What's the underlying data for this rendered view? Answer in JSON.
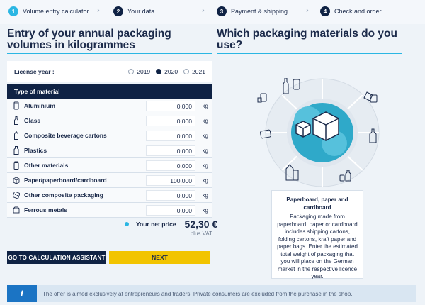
{
  "steps": [
    {
      "num": "1",
      "label": "Volume entry calculator"
    },
    {
      "num": "2",
      "label": "Your data"
    },
    {
      "num": "3",
      "label": "Payment & shipping"
    },
    {
      "num": "4",
      "label": "Check and order"
    }
  ],
  "left_heading": "Entry of your annual packaging volumes in kilogrammes",
  "right_heading": "Which packaging materials do you use?",
  "license": {
    "label": "License year :",
    "options": [
      "2019",
      "2020",
      "2021"
    ],
    "selected": "2020"
  },
  "table_header": "Type of material",
  "materials": [
    {
      "label": "Aluminium",
      "value": "0,000",
      "unit": "kg",
      "icon": "can-icon"
    },
    {
      "label": "Glass",
      "value": "0,000",
      "unit": "kg",
      "icon": "bottle-icon"
    },
    {
      "label": "Composite beverage cartons",
      "value": "0,000",
      "unit": "kg",
      "icon": "carton-icon"
    },
    {
      "label": "Plastics",
      "value": "0,000",
      "unit": "kg",
      "icon": "plastic-bottle-icon"
    },
    {
      "label": "Other materials",
      "value": "0,000",
      "unit": "kg",
      "icon": "jar-icon"
    },
    {
      "label": "Paper/paperboard/cardboard",
      "value": "100,000",
      "unit": "kg",
      "icon": "box-icon"
    },
    {
      "label": "Other composite packaging",
      "value": "0,000",
      "unit": "kg",
      "icon": "blister-icon"
    },
    {
      "label": "Ferrous metals",
      "value": "0,000",
      "unit": "kg",
      "icon": "tin-icon"
    }
  ],
  "price": {
    "label": "Your net price",
    "value": "52,30 €",
    "vat": "plus VAT"
  },
  "buttons": {
    "calc": "GO TO CALCULATION ASSISTANT",
    "next": "NEXT"
  },
  "info": {
    "icon": "i",
    "text": "The offer is aimed exclusively at entrepreneurs and traders. Private consumers are excluded from the purchase in the shop."
  },
  "description": {
    "title": "Paperboard, paper and cardboard",
    "body": "Packaging made from paperboard, paper or cardboard includes shipping cartons, folding cartons, kraft paper and paper bags. Enter the estimated total weight of packaging that you will place on the German market in the respective licence year."
  },
  "colors": {
    "navy": "#0f2244",
    "accent": "#2bb6e3",
    "yellow": "#f2c400",
    "info_blue": "#1b74c4"
  }
}
